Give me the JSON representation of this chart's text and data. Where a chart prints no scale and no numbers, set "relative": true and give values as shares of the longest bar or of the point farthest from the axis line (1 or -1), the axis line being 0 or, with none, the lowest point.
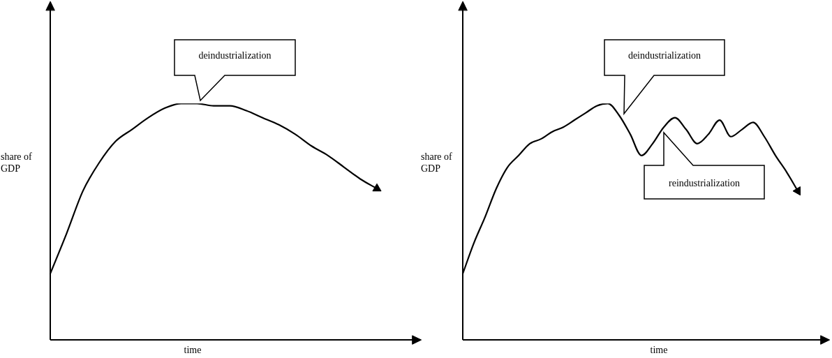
{
  "chart_data": [
    {
      "type": "line",
      "xlabel": "time",
      "ylabel": "share of GDP",
      "relative": true,
      "marker": "none",
      "line_style": "solid",
      "legend": false,
      "color": "#000000",
      "categories": [
        null,
        null,
        null,
        null,
        null,
        null,
        null,
        null,
        null,
        null,
        null,
        null,
        null,
        null,
        null,
        null,
        null,
        null,
        null,
        null,
        null
      ],
      "values": [
        0.28,
        0.45,
        0.63,
        0.75,
        0.84,
        0.89,
        0.94,
        0.98,
        1.0,
        1.0,
        0.99,
        0.99,
        0.97,
        0.94,
        0.91,
        0.87,
        0.82,
        0.78,
        0.73,
        0.68,
        0.64
      ],
      "annotations": [
        "deindustrialization"
      ]
    },
    {
      "type": "line",
      "xlabel": "time",
      "ylabel": "share of GDP",
      "relative": true,
      "marker": "none",
      "line_style": "solid",
      "legend": false,
      "color": "#000000",
      "categories": [
        null,
        null,
        null,
        null,
        null,
        null,
        null,
        null,
        null,
        null,
        null,
        null,
        null,
        null,
        null,
        null,
        null,
        null,
        null,
        null,
        null,
        null,
        null,
        null,
        null,
        null,
        null,
        null,
        null,
        null,
        null
      ],
      "values": [
        0.28,
        0.41,
        0.52,
        0.64,
        0.73,
        0.78,
        0.83,
        0.85,
        0.88,
        0.9,
        0.93,
        0.96,
        0.99,
        1.0,
        0.95,
        0.87,
        0.78,
        0.83,
        0.9,
        0.94,
        0.89,
        0.83,
        0.87,
        0.93,
        0.86,
        0.89,
        0.92,
        0.86,
        0.78,
        0.71,
        0.63
      ],
      "annotations": [
        "deindustrialization",
        "reindustrialization"
      ]
    }
  ]
}
